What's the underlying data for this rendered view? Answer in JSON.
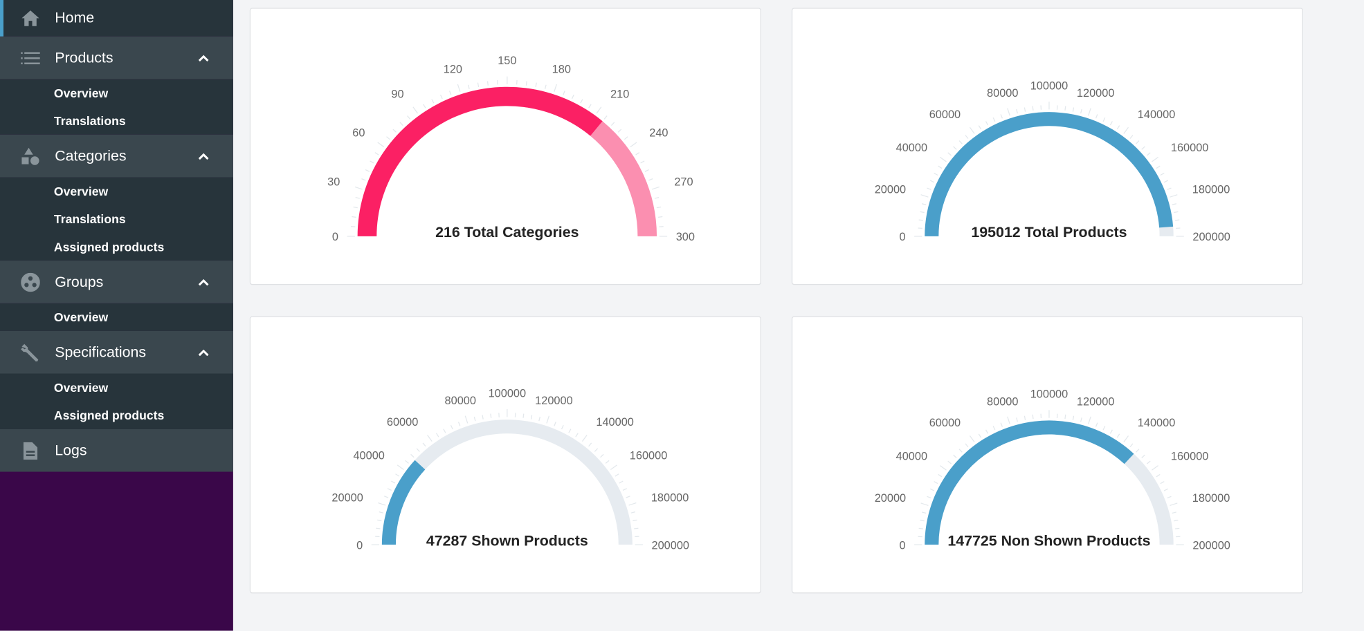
{
  "sidebar": {
    "home": {
      "label": "Home",
      "icon": "home-icon"
    },
    "sections": [
      {
        "label": "Products",
        "icon": "list-icon",
        "expanded": true,
        "items": [
          "Overview",
          "Translations"
        ]
      },
      {
        "label": "Categories",
        "icon": "shapes-icon",
        "expanded": true,
        "items": [
          "Overview",
          "Translations",
          "Assigned products"
        ]
      },
      {
        "label": "Groups",
        "icon": "group-icon",
        "expanded": true,
        "items": [
          "Overview"
        ]
      },
      {
        "label": "Specifications",
        "icon": "wrench-icon",
        "expanded": true,
        "items": [
          "Overview",
          "Assigned products"
        ]
      }
    ],
    "logs": {
      "label": "Logs",
      "icon": "document-icon"
    }
  },
  "colors": {
    "accent": "#4a9fca",
    "pink": "#fb2064",
    "pink_light": "#fb8fb0",
    "track": "#e6ebf0",
    "sidebar_dark": "#27343b",
    "sidebar_head": "#3a474e",
    "purple": "#3a0749"
  },
  "chart_data": [
    {
      "type": "gauge",
      "label": "216 Total Categories",
      "value": 216,
      "min": 0,
      "max": 300,
      "ticks": [
        0,
        30,
        60,
        90,
        120,
        150,
        180,
        210,
        240,
        270,
        300
      ],
      "color": "#fb2064",
      "track": "#fb8fb0"
    },
    {
      "type": "gauge",
      "label": "195012 Total Products",
      "value": 195012,
      "min": 0,
      "max": 200000,
      "ticks": [
        0,
        20000,
        40000,
        60000,
        80000,
        100000,
        120000,
        140000,
        160000,
        180000,
        200000
      ],
      "color": "#4a9fca",
      "track": "#e6ebf0"
    },
    {
      "type": "gauge",
      "label": "47287 Shown Products",
      "value": 47287,
      "min": 0,
      "max": 200000,
      "ticks": [
        0,
        20000,
        40000,
        60000,
        80000,
        100000,
        120000,
        140000,
        160000,
        180000,
        200000
      ],
      "color": "#4a9fca",
      "track": "#e6ebf0"
    },
    {
      "type": "gauge",
      "label": "147725 Non Shown Products",
      "value": 147725,
      "min": 0,
      "max": 200000,
      "ticks": [
        0,
        20000,
        40000,
        60000,
        80000,
        100000,
        120000,
        140000,
        160000,
        180000,
        200000
      ],
      "color": "#4a9fca",
      "track": "#e6ebf0"
    }
  ]
}
